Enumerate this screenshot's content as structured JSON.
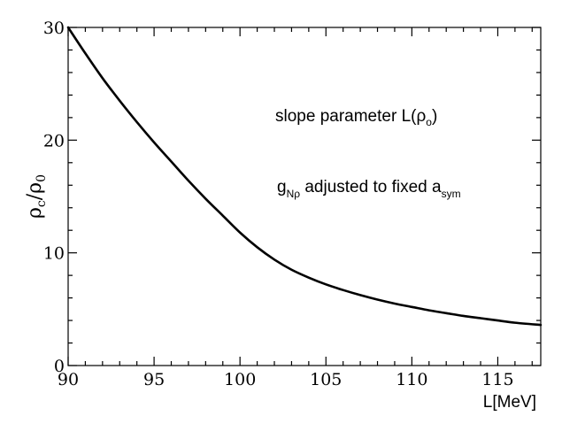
{
  "chart_data": {
    "type": "line",
    "title": "",
    "xlabel": "L[MeV]",
    "ylabel": {
      "main": "ρ",
      "sub1": "c",
      "slash": "/",
      "main2": "ρ",
      "sub2": "0"
    },
    "xlim": [
      90,
      117.5
    ],
    "ylim": [
      0,
      30
    ],
    "xticks": [
      90,
      95,
      100,
      105,
      110,
      115
    ],
    "yticks": [
      0,
      10,
      20,
      30
    ],
    "grid": false,
    "legend": "none",
    "line_color": "#000000",
    "series": [
      {
        "x": [
          90,
          91,
          92,
          93,
          94,
          95,
          96,
          97,
          98,
          99,
          100,
          101,
          102,
          103,
          104,
          105,
          106,
          107,
          108,
          109,
          110,
          111,
          112,
          113,
          114,
          115,
          116,
          117.5
        ],
        "y": [
          30.0,
          27.7,
          25.5,
          23.5,
          21.6,
          19.8,
          18.1,
          16.4,
          14.8,
          13.3,
          11.8,
          10.5,
          9.4,
          8.5,
          7.8,
          7.2,
          6.7,
          6.25,
          5.85,
          5.5,
          5.2,
          4.9,
          4.65,
          4.4,
          4.2,
          4.0,
          3.8,
          3.6
        ]
      }
    ],
    "annotations": {
      "line1": {
        "text": "slope parameter L(",
        "sym": "ρ",
        "sub": "o",
        "close": ")"
      },
      "line2": {
        "pre": "g",
        "pre_sub": "Nρ",
        "text": " adjusted to fixed a",
        "post_sub": "sym"
      }
    }
  }
}
